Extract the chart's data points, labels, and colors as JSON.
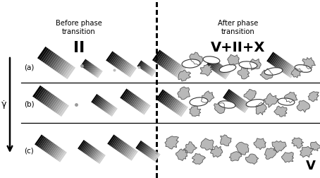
{
  "title_left": "Before phase\ntransition",
  "title_right": "After phase\ntransition",
  "label_left_big": "II",
  "label_right_big": "V+II+X",
  "label_v": "V",
  "row_labels": [
    "(a)",
    "(b)",
    "(c)"
  ],
  "arrow_label": "γ̇",
  "fig_width": 4.54,
  "fig_height": 2.53,
  "dpi": 100,
  "bg_color": "#ffffff",
  "text_color": "#000000"
}
